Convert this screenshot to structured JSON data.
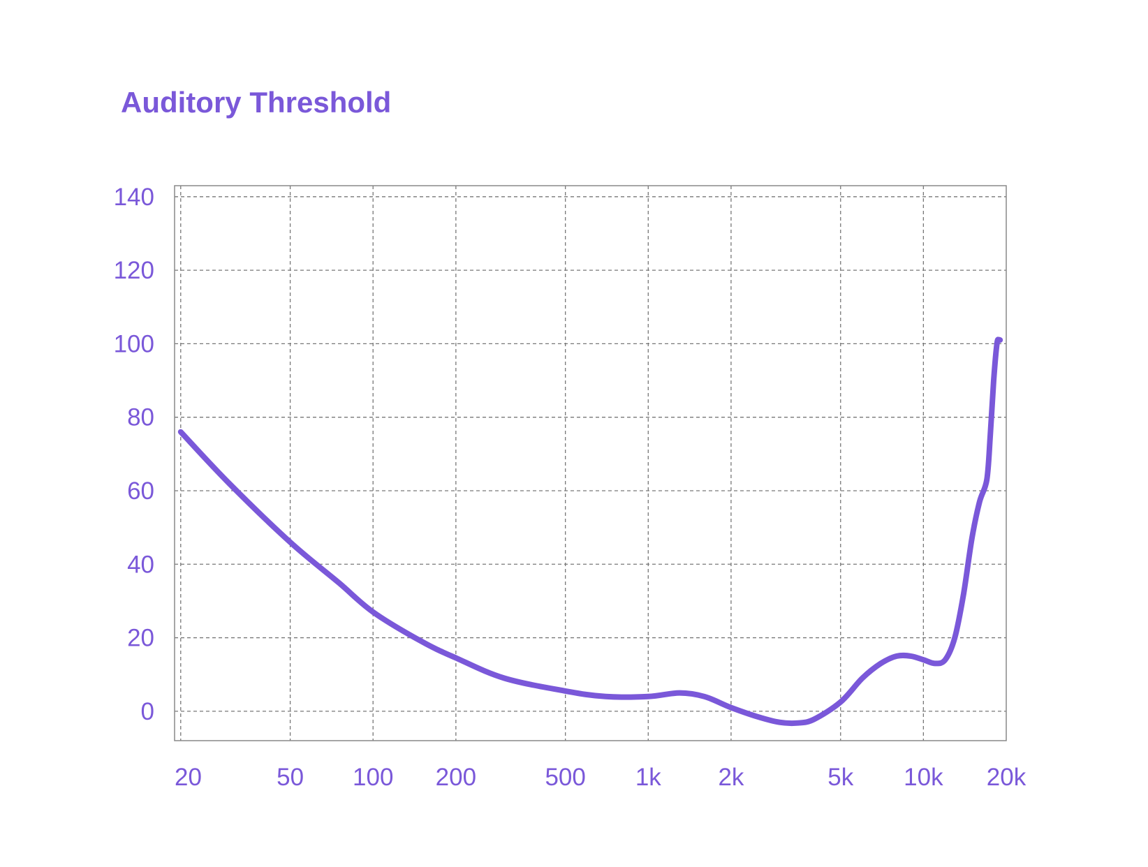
{
  "chart_data": {
    "type": "line",
    "title": "Auditory Threshold",
    "xlabel": "",
    "ylabel": "",
    "x_scale": "log",
    "xlim": [
      19,
      20000
    ],
    "ylim": [
      -8,
      143
    ],
    "x_ticks": [
      {
        "value": 20,
        "label": "20"
      },
      {
        "value": 50,
        "label": "50"
      },
      {
        "value": 100,
        "label": "100"
      },
      {
        "value": 200,
        "label": "200"
      },
      {
        "value": 500,
        "label": "500"
      },
      {
        "value": 1000,
        "label": "1k"
      },
      {
        "value": 2000,
        "label": "2k"
      },
      {
        "value": 5000,
        "label": "5k"
      },
      {
        "value": 10000,
        "label": "10k"
      },
      {
        "value": 20000,
        "label": "20k"
      }
    ],
    "y_ticks": [
      {
        "value": 0,
        "label": "0"
      },
      {
        "value": 20,
        "label": "20"
      },
      {
        "value": 40,
        "label": "40"
      },
      {
        "value": 60,
        "label": "60"
      },
      {
        "value": 80,
        "label": "80"
      },
      {
        "value": 100,
        "label": "100"
      },
      {
        "value": 120,
        "label": "120"
      },
      {
        "value": 140,
        "label": "140"
      }
    ],
    "grid": true,
    "legend": "none",
    "series": [
      {
        "x": [
          20,
          30,
          50,
          75,
          100,
          150,
          200,
          300,
          500,
          700,
          1000,
          1300,
          1600,
          2000,
          2500,
          3000,
          3500,
          4000,
          5000,
          6000,
          7000,
          8000,
          9000,
          10000,
          11000,
          12000,
          13000,
          14000,
          15000,
          16000,
          17000,
          17500,
          18000,
          18500,
          18800,
          19000
        ],
        "y": [
          76,
          62,
          46,
          35,
          27,
          19,
          14.5,
          9,
          5.5,
          4,
          4,
          5,
          4,
          1,
          -1.5,
          -3,
          -3.2,
          -2.2,
          2.5,
          9,
          13,
          15,
          15,
          14,
          13,
          14,
          20,
          32,
          47,
          57,
          63,
          75,
          90,
          100,
          101,
          101
        ]
      }
    ],
    "colors": {
      "accent": "#7a58d9",
      "line": "#7a58d9",
      "grid": "#777777",
      "frame": "#888888"
    }
  }
}
